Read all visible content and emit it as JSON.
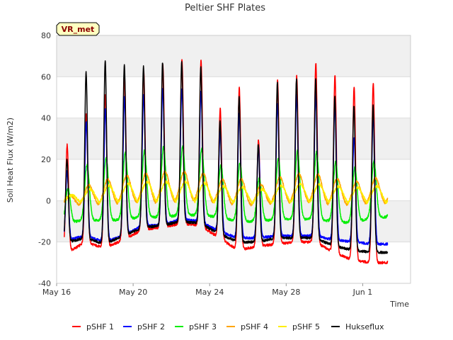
{
  "chart_data": {
    "type": "line",
    "title": "Peltier SHF Plates",
    "xlabel": "Time",
    "ylabel": "Soil Heat Flux (W/m2)",
    "ylim": [
      -40,
      80
    ],
    "yticks": [
      -40,
      -20,
      0,
      20,
      40,
      60,
      80
    ],
    "xlim_days": [
      0,
      18.5
    ],
    "xticks": [
      {
        "day": 0,
        "label": "May 16"
      },
      {
        "day": 4,
        "label": "May 20"
      },
      {
        "day": 8,
        "label": "May 24"
      },
      {
        "day": 12,
        "label": "May 28"
      },
      {
        "day": 16,
        "label": "Jun 1"
      }
    ],
    "grid": true,
    "legend_position": "bottom",
    "badge": "VR_met",
    "data_start_day": 0.4,
    "data_end_day": 17.3,
    "peak_phase": 0.55,
    "day_x": [
      0.4,
      0.6,
      1.5,
      2.5,
      3.5,
      4.5,
      5.5,
      6.5,
      7.5,
      8.5,
      9.5,
      10.5,
      11.5,
      12.5,
      13.5,
      14.5,
      15.5,
      16.5,
      17.3
    ],
    "series": [
      {
        "name": "pSHF 1",
        "color": "#ff0000",
        "phase": 0.0,
        "width": 0.075,
        "peaks": [
          27,
          27,
          41,
          51,
          60,
          63,
          66,
          68,
          69,
          44,
          56,
          28,
          58,
          60,
          67,
          61,
          55,
          57,
          57
        ],
        "troughs": [
          -25,
          -25,
          -20,
          -23,
          -19,
          -14,
          -13,
          -11,
          -12,
          -18,
          -24,
          -22,
          -21,
          -20,
          -20,
          -25,
          -29,
          -30,
          -30
        ]
      },
      {
        "name": "pSHF 2",
        "color": "#0000ff",
        "phase": 0.0,
        "width": 0.075,
        "peaks": [
          14,
          14,
          38,
          44,
          50,
          51,
          54,
          54,
          54,
          33,
          43,
          25,
          47,
          51,
          52,
          48,
          30,
          41,
          41
        ],
        "troughs": [
          -19,
          -19,
          -17,
          -20,
          -17,
          -12,
          -12,
          -9,
          -10,
          -15,
          -18,
          -18,
          -17,
          -17,
          -17,
          -19,
          -20,
          -21,
          -21
        ]
      },
      {
        "name": "pSHF 3",
        "color": "#00ee00",
        "phase": 0.04,
        "width": 0.12,
        "peaks": [
          6,
          6,
          17,
          21,
          23,
          24,
          26,
          26,
          26,
          17,
          19,
          10,
          20,
          24,
          24,
          19,
          16,
          19,
          19
        ],
        "troughs": [
          -11,
          -11,
          -9,
          -10,
          -9,
          -8,
          -8,
          -7,
          -7,
          -8,
          -10,
          -10,
          -9,
          -9,
          -9,
          -10,
          -11,
          -8,
          -8
        ]
      },
      {
        "name": "pSHF 4",
        "color": "#ffa500",
        "phase": 0.12,
        "width": 0.22,
        "peaks": [
          2,
          2,
          7,
          10,
          12,
          13,
          14,
          14,
          14,
          10,
          11,
          7,
          11,
          13,
          13,
          11,
          9,
          11,
          11
        ],
        "troughs": [
          -3,
          -3,
          -2,
          -3,
          -2,
          -2,
          -2,
          -1,
          -1,
          -2,
          -3,
          -3,
          -2,
          -2,
          -2,
          -3,
          -3,
          -2,
          -2
        ]
      },
      {
        "name": "pSHF 5",
        "color": "#ffee00",
        "phase": 0.18,
        "width": 0.28,
        "peaks": [
          2,
          2,
          5,
          7,
          8,
          9,
          9,
          9,
          9,
          7,
          7,
          5,
          7,
          8,
          8,
          7,
          6,
          7,
          7
        ],
        "troughs": [
          -1,
          -1,
          -2,
          -3,
          -3,
          -3,
          -3,
          -3,
          -3,
          -3,
          -3,
          -3,
          -3,
          -3,
          -3,
          -3,
          -3,
          -3,
          -3
        ]
      },
      {
        "name": "Hukseflux",
        "color": "#000000",
        "phase": -0.01,
        "width": 0.07,
        "peaks": [
          20,
          20,
          62,
          68,
          66,
          65,
          67,
          67,
          66,
          38,
          51,
          26,
          57,
          59,
          59,
          51,
          46,
          46,
          46
        ],
        "troughs": [
          -20,
          -20,
          -18,
          -21,
          -17,
          -13,
          -12,
          -10,
          -11,
          -16,
          -20,
          -20,
          -18,
          -18,
          -18,
          -22,
          -24,
          -25,
          -25
        ]
      }
    ]
  }
}
